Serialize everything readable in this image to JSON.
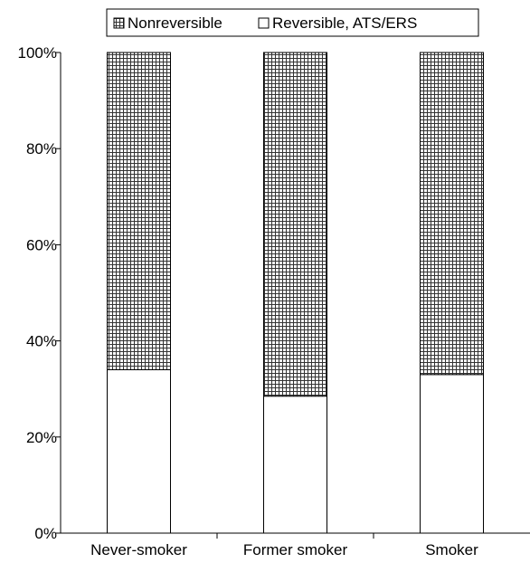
{
  "chart_data": {
    "type": "bar",
    "stacked": true,
    "normalized": true,
    "title": "",
    "xlabel": "",
    "ylabel": "",
    "categories": [
      "Never-smoker",
      "Former smoker",
      "Smoker"
    ],
    "series": [
      {
        "name": "Reversible, ATS/ERS",
        "values": [
          34,
          28.5,
          33
        ],
        "fill": "#ffffff",
        "pattern": "none"
      },
      {
        "name": "Nonreversible",
        "values": [
          66,
          71.5,
          67
        ],
        "fill": "#ffffff",
        "pattern": "crosshatch"
      }
    ],
    "legend_order": [
      "Nonreversible",
      "Reversible, ATS/ERS"
    ],
    "ylim": [
      0,
      100
    ],
    "yticks": [
      0,
      20,
      40,
      60,
      80,
      100
    ],
    "ytick_labels": [
      "0%",
      "20%",
      "40%",
      "60%",
      "80%",
      "100%"
    ],
    "grid": false,
    "legend_position": "top"
  }
}
